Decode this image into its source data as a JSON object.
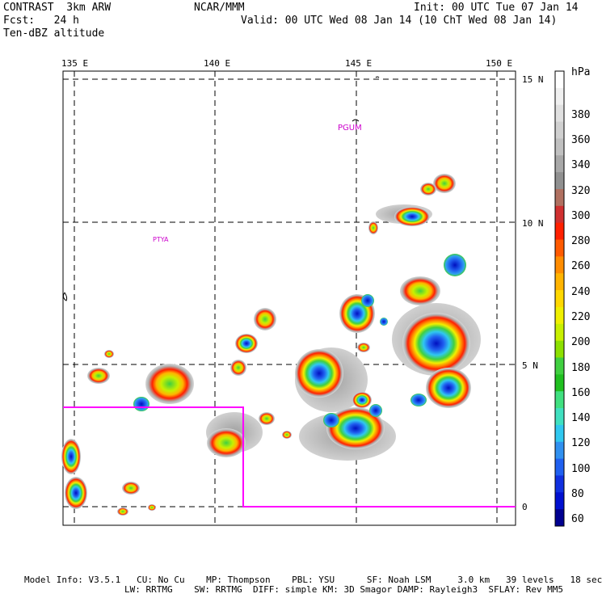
{
  "header": {
    "left_line1": "CONTRAST  3km ARW",
    "left_line2": "Fcst:   24 h",
    "left_line3": "Ten-dBZ altitude",
    "center": "NCAR/MMM",
    "right_line1": "Init: 00 UTC Tue 07 Jan 14",
    "right_line2": "Valid: 00 UTC Wed 08 Jan 14 (10 ChT Wed 08 Jan 14)"
  },
  "map": {
    "lon_labels": [
      "135 E",
      "140 E",
      "145 E",
      "150 E"
    ],
    "lat_labels": [
      "15 N",
      "10 N",
      "5 N",
      "0"
    ],
    "place_labels": [
      "PGUM",
      "PTYA"
    ],
    "station_color": "#cc00cc",
    "domain_box_color": "#ff00ff"
  },
  "colorbar": {
    "unit": "hPa",
    "labels": [
      "380",
      "360",
      "340",
      "320",
      "300",
      "280",
      "260",
      "240",
      "220",
      "200",
      "180",
      "160",
      "140",
      "120",
      "100",
      "80",
      "60"
    ],
    "colors": [
      "#ffffff",
      "#f0f0f0",
      "#e0e0e0",
      "#d0d0d0",
      "#c0c0c0",
      "#a8a8a8",
      "#909090",
      "#b07060",
      "#d03030",
      "#ff2000",
      "#ff5a00",
      "#ff8c00",
      "#ffb400",
      "#ffd800",
      "#f0f000",
      "#c8f000",
      "#8ce000",
      "#40d040",
      "#20c020",
      "#40e080",
      "#40e0c0",
      "#30c8f0",
      "#3090f0",
      "#2060f0",
      "#1030e0",
      "#0010d0",
      "#000090"
    ]
  },
  "footer": {
    "line1": "Model Info: V3.5.1   CU: No Cu    MP: Thompson    PBL: YSU      SF: Noah LSM     3.0 km   39 levels   18 sec",
    "line2": "LW: RRTMG    SW: RRTMG  DIFF: simple KM: 3D Smagor DAMP: Rayleigh3  SFLAY: Rev MM5"
  }
}
